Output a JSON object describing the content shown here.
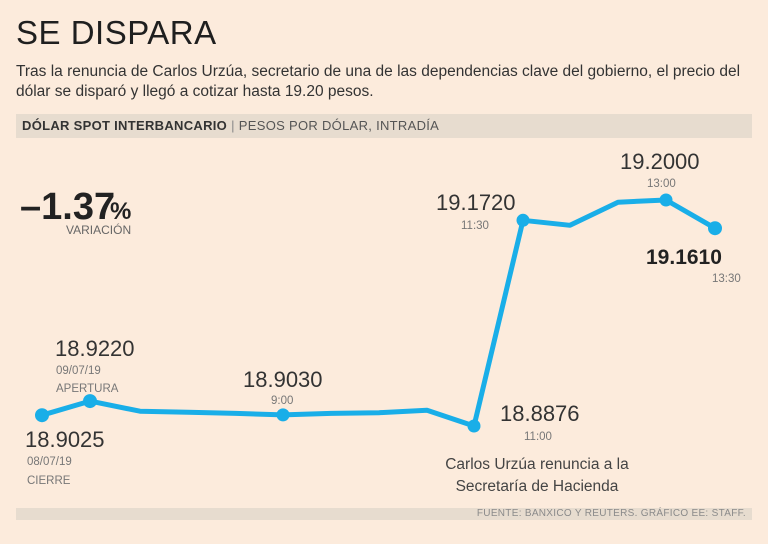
{
  "header": {
    "title": "SE DISPARA",
    "subtitle": "Tras la renuncia de Carlos Urzúa, secretario de una de las dependencias clave del gobierno, el precio del dólar se disparó y llegó a cotizar hasta 19.20 pesos.",
    "band_strong": "DÓLAR SPOT INTERBANCARIO",
    "band_sep": "|",
    "band_light": "PESOS POR DÓLAR, INTRADÍA"
  },
  "kpi": {
    "value": "–1.37",
    "unit": "%",
    "label": "VARIACIÓN"
  },
  "annotations": {
    "p0_value": "18.9025",
    "p0_date": "08/07/19",
    "p0_note": "CIERRE",
    "p1_value": "18.9220",
    "p1_date": "09/07/19",
    "p1_note": "APERTURA",
    "p2_value": "18.9030",
    "p2_time": "9:00",
    "p3_value": "18.8876",
    "p3_time": "11:00",
    "p3_note_1": "Carlos Urzúa renuncia a la",
    "p3_note_2": "Secretaría de Hacienda",
    "p4_value": "19.1720",
    "p4_time": "11:30",
    "p5_value": "19.2000",
    "p5_time": "13:00",
    "p6_value": "19.1610",
    "p6_time": "13:30"
  },
  "footer": {
    "source": "FUENTE: BANXICO Y REUTERS. GRÁFICO EE: STAFF."
  },
  "colors": {
    "line": "#19aee8",
    "background": "#fcebdc",
    "band": "#e7dccf"
  },
  "chart_data": {
    "type": "line",
    "title": "DÓLAR SPOT INTERBANCARIO",
    "ylabel": "PESOS POR DÓLAR, INTRADÍA",
    "xlabel": "",
    "ylim": [
      18.87,
      19.21
    ],
    "series": [
      {
        "name": "Dólar spot",
        "values": [
          18.9025,
          18.922,
          18.908,
          18.9065,
          18.905,
          18.903,
          18.905,
          18.906,
          18.9095,
          18.8876,
          19.172,
          19.165,
          19.197,
          19.2,
          19.161
        ]
      }
    ],
    "highlighted_points": [
      {
        "index": 0,
        "value": 18.9025,
        "label": "08/07/19 CIERRE"
      },
      {
        "index": 1,
        "value": 18.922,
        "label": "09/07/19 APERTURA"
      },
      {
        "index": 5,
        "value": 18.903,
        "label": "9:00"
      },
      {
        "index": 9,
        "value": 18.8876,
        "label": "11:00"
      },
      {
        "index": 10,
        "value": 19.172,
        "label": "11:30"
      },
      {
        "index": 13,
        "value": 19.2,
        "label": "13:00"
      },
      {
        "index": 14,
        "value": 19.161,
        "label": "13:30"
      }
    ]
  }
}
